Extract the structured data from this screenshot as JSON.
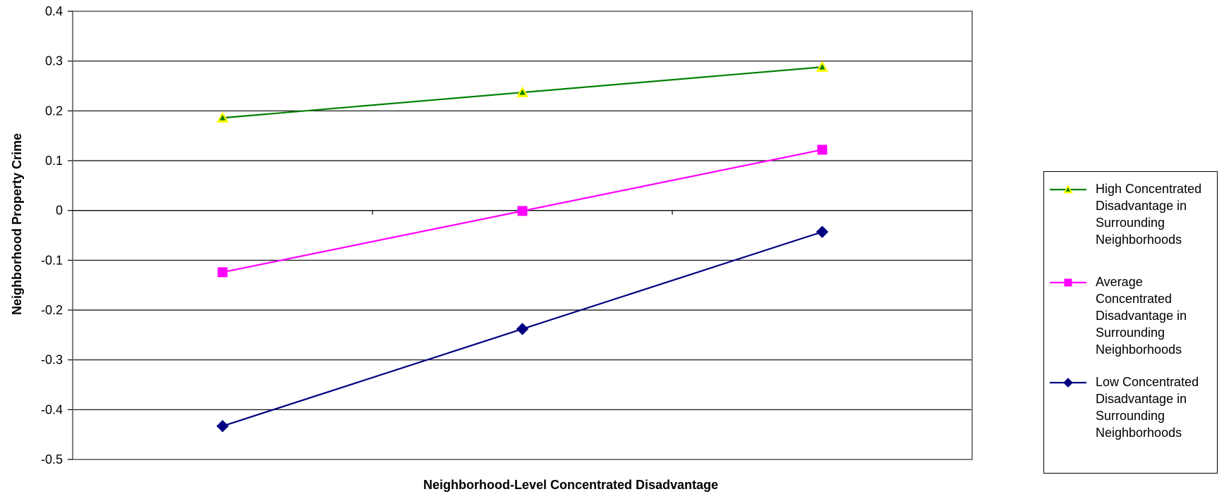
{
  "chart_data": {
    "type": "line",
    "title": "",
    "xlabel": "Neighborhood-Level  Concentrated Disadvantage",
    "ylabel": "Neighborhood   Property Crime",
    "ylim": [
      -0.5,
      0.4
    ],
    "yticks": [
      "0.4",
      "0.3",
      "0.2",
      "0.1",
      "0",
      "-0.1",
      "-0.2",
      "-0.3",
      "-0.4",
      "-0.5"
    ],
    "ytick_values": [
      0.4,
      0.3,
      0.2,
      0.1,
      0,
      -0.1,
      -0.2,
      -0.3,
      -0.4,
      -0.5
    ],
    "categories": [
      "",
      "",
      ""
    ],
    "grid": true,
    "legend_position": "right",
    "series": [
      {
        "name": "High Concentrated Disadvantage in Surrounding Neighborhoods",
        "label_lines": [
          "High Concentrated",
          "Disadvantage in",
          "Surrounding",
          "Neighborhoods"
        ],
        "values": [
          0.186,
          0.237,
          0.288
        ],
        "line_color": "#008000",
        "marker": "triangle",
        "marker_fill": "#ffff00",
        "marker_inner": "#008000"
      },
      {
        "name": "Average Concentrated Disadvantage in Surrounding Neighborhoods",
        "label_lines": [
          "Average",
          "Concentrated",
          "Disadvantage in",
          "Surrounding",
          "Neighborhoods"
        ],
        "values": [
          -0.124,
          -0.001,
          0.122
        ],
        "line_color": "#ff00ff",
        "marker": "square",
        "marker_fill": "#ff00ff",
        "marker_inner": "#ff00ff"
      },
      {
        "name": "Low Concentrated Disadvantage in Surrounding Neighborhoods",
        "label_lines": [
          "Low Concentrated",
          "Disadvantage in",
          "Surrounding",
          "Neighborhoods"
        ],
        "values": [
          -0.433,
          -0.238,
          -0.043
        ],
        "line_color": "#000080",
        "marker": "diamond",
        "marker_fill": "#000080",
        "marker_inner": "#000080"
      }
    ]
  }
}
